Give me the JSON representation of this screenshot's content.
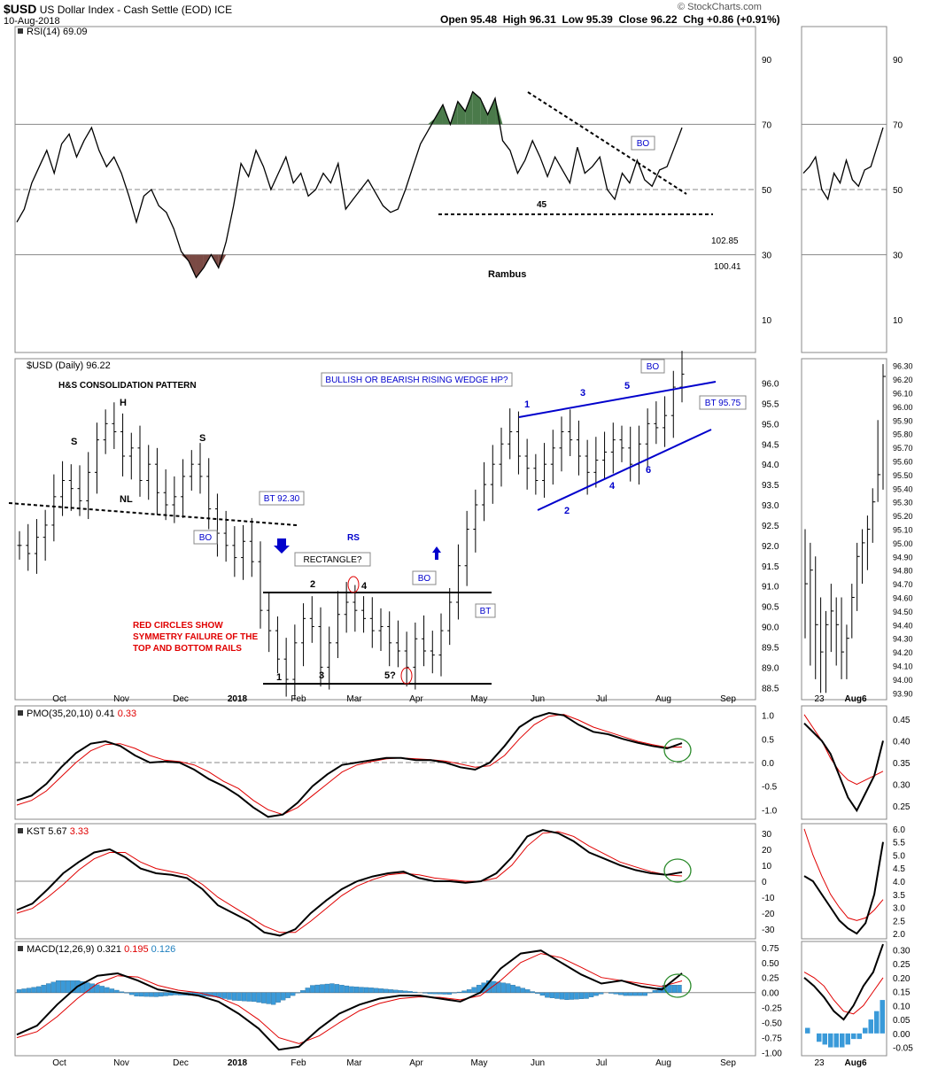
{
  "header": {
    "symbol": "$USD",
    "name": "US Dollar Index - Cash Settle (EOD) ICE",
    "date": "10-Aug-2018",
    "open_label": "Open",
    "open": "95.48",
    "high_label": "High",
    "high": "96.31",
    "low_label": "Low",
    "low": "95.39",
    "close_label": "Close",
    "close": "96.22",
    "chg_label": "Chg",
    "chg": "+0.86 (+0.91%)",
    "watermark": "© StockCharts.com"
  },
  "colors": {
    "line": "#000000",
    "signal": "#e00000",
    "blue": "#0000cc",
    "hist": "#3a9ad9",
    "ob": "#4a7a4a",
    "os": "#7a4a44",
    "grid": "#999999"
  },
  "chart_data": [
    {
      "type": "line",
      "panel": "RSI",
      "legend": "RSI(14) 69.09",
      "ylim": [
        0,
        100
      ],
      "yticks": [
        10,
        30,
        50,
        70,
        90
      ],
      "ref_lines": [
        30,
        50,
        70
      ],
      "side_values": [
        "102.85",
        "100.41"
      ],
      "annotations": {
        "support_level": "45",
        "bo": "BO",
        "author": "Rambus"
      },
      "x_labels": [
        "Oct",
        "Nov",
        "Dec",
        "2018",
        "Feb",
        "Mar",
        "Apr",
        "May",
        "Jun",
        "Jul",
        "Aug",
        "Sep"
      ],
      "values": [
        40,
        44,
        52,
        57,
        62,
        55,
        64,
        67,
        60,
        65,
        69,
        62,
        57,
        60,
        55,
        48,
        40,
        48,
        50,
        45,
        43,
        38,
        31,
        28,
        23,
        26,
        30,
        26,
        34,
        45,
        58,
        54,
        62,
        57,
        50,
        55,
        60,
        52,
        55,
        48,
        50,
        55,
        52,
        58,
        44,
        47,
        50,
        53,
        49,
        45,
        43,
        44,
        50,
        57,
        64,
        68,
        72,
        76,
        70,
        77,
        74,
        80,
        78,
        73,
        78,
        65,
        62,
        55,
        59,
        65,
        60,
        54,
        60,
        56,
        52,
        63,
        55,
        57,
        60,
        50,
        47,
        55,
        52,
        59,
        53,
        51,
        56,
        57,
        63,
        69
      ]
    },
    {
      "type": "bar",
      "panel": "Price",
      "legend": "$USD (Daily) 96.22",
      "ylim": [
        88.2,
        96.6
      ],
      "yticks": [
        "88.5",
        "89.0",
        "89.5",
        "90.0",
        "90.5",
        "91.0",
        "91.5",
        "92.0",
        "92.5",
        "93.0",
        "93.5",
        "94.0",
        "94.5",
        "95.0",
        "95.5",
        "96.0"
      ],
      "x_labels": [
        "Oct",
        "Nov",
        "Dec",
        "2018",
        "Feb",
        "Mar",
        "Apr",
        "May",
        "Jun",
        "Jul",
        "Aug",
        "Sep"
      ],
      "closes": [
        92.0,
        91.8,
        92.2,
        92.5,
        93.2,
        93.6,
        93.4,
        93.1,
        93.8,
        94.6,
        95.0,
        94.8,
        94.2,
        94.4,
        93.6,
        94.0,
        93.3,
        93.0,
        93.2,
        93.7,
        94.0,
        93.7,
        92.9,
        92.3,
        92.0,
        91.7,
        92.1,
        91.6,
        90.4,
        89.9,
        89.2,
        88.7,
        89.6,
        90.2,
        90.0,
        89.0,
        89.6,
        90.3,
        90.6,
        90.4,
        90.2,
        89.9,
        90.0,
        89.6,
        89.4,
        89.0,
        89.7,
        89.4,
        89.3,
        89.9,
        90.6,
        91.5,
        92.4,
        93.0,
        93.5,
        94.0,
        94.5,
        94.8,
        94.2,
        93.9,
        93.6,
        94.0,
        94.4,
        94.8,
        94.6,
        94.2,
        93.8,
        94.1,
        94.3,
        94.6,
        94.4,
        94.0,
        94.5,
        95.0,
        94.9,
        95.2,
        95.9,
        96.22
      ],
      "annotations": {
        "pattern_title": "H&S CONSOLIDATION PATTERN",
        "left_shoulder": "S",
        "head": "H",
        "right_shoulder": "S",
        "neckline": "NL",
        "bt1": "BT 92.30",
        "bo1": "BO",
        "rs": "RS",
        "rectangle": "RECTANGLE?",
        "rect_pts": [
          "1",
          "2",
          "3",
          "4",
          "5?"
        ],
        "bo2": "BO",
        "bt2": "BT",
        "red_note_lines": [
          "RED CIRCLES SHOW",
          "SYMMETRY FAILURE OF THE",
          "TOP AND BOTTOM RAILS"
        ],
        "wedge_title": "BULLISH OR BEARISH RISING WEDGE HP?",
        "wedge_pts": [
          "1",
          "2",
          "3",
          "4",
          "5",
          "6"
        ],
        "bo3": "BO",
        "bt3": "BT 95.75"
      }
    },
    {
      "type": "line",
      "panel": "PMO",
      "legend_name": "PMO(35,20,10)",
      "legend_val1": "0.41",
      "legend_val2": "0.33",
      "ylim": [
        -1.2,
        1.2
      ],
      "yticks": [
        "-1.0",
        "-0.5",
        "0.0",
        "0.5",
        "1.0"
      ],
      "series": [
        {
          "name": "PMO",
          "values": [
            -0.8,
            -0.7,
            -0.45,
            -0.1,
            0.2,
            0.4,
            0.45,
            0.35,
            0.15,
            0.0,
            0.02,
            0.0,
            -0.15,
            -0.35,
            -0.5,
            -0.7,
            -0.95,
            -1.15,
            -1.1,
            -0.85,
            -0.5,
            -0.25,
            -0.05,
            0.0,
            0.05,
            0.1,
            0.1,
            0.05,
            0.05,
            0.0,
            -0.1,
            -0.15,
            0.0,
            0.35,
            0.75,
            0.95,
            1.05,
            1.0,
            0.8,
            0.65,
            0.6,
            0.5,
            0.42,
            0.35,
            0.3,
            0.41
          ]
        },
        {
          "name": "Signal",
          "values": [
            -0.9,
            -0.8,
            -0.6,
            -0.3,
            0.0,
            0.25,
            0.38,
            0.4,
            0.3,
            0.15,
            0.05,
            0.02,
            -0.05,
            -0.2,
            -0.4,
            -0.55,
            -0.8,
            -1.0,
            -1.1,
            -0.95,
            -0.7,
            -0.45,
            -0.2,
            -0.05,
            0.02,
            0.08,
            0.1,
            0.08,
            0.06,
            0.03,
            -0.03,
            -0.1,
            -0.07,
            0.15,
            0.5,
            0.8,
            0.98,
            1.02,
            0.9,
            0.75,
            0.65,
            0.55,
            0.45,
            0.38,
            0.32,
            0.33
          ]
        }
      ],
      "inset": {
        "ylim": [
          0.22,
          0.48
        ],
        "yticks": [
          "0.25",
          "0.30",
          "0.35",
          "0.40",
          "0.45"
        ],
        "series": [
          [
            0.44,
            0.42,
            0.4,
            0.37,
            0.32,
            0.27,
            0.24,
            0.28,
            0.32,
            0.4
          ],
          [
            0.46,
            0.43,
            0.4,
            0.36,
            0.33,
            0.31,
            0.3,
            0.31,
            0.32,
            0.33
          ]
        ]
      }
    },
    {
      "type": "line",
      "panel": "KST",
      "legend_name": "KST",
      "legend_val1": "5.67",
      "legend_val2": "3.33",
      "ylim": [
        -36,
        36
      ],
      "yticks": [
        "-30",
        "-20",
        "-10",
        "0",
        "10",
        "20",
        "30"
      ],
      "series": [
        {
          "name": "KST",
          "values": [
            -18,
            -14,
            -5,
            5,
            12,
            18,
            20,
            15,
            8,
            5,
            4,
            2,
            -5,
            -15,
            -20,
            -25,
            -32,
            -34,
            -30,
            -20,
            -12,
            -5,
            0,
            3,
            5,
            6,
            2,
            0,
            0,
            -1,
            0,
            5,
            15,
            28,
            32,
            30,
            25,
            18,
            14,
            10,
            7,
            5,
            4,
            5.67
          ]
        },
        {
          "name": "Signal",
          "values": [
            -20,
            -17,
            -10,
            -2,
            7,
            14,
            18,
            18,
            12,
            8,
            6,
            4,
            -2,
            -10,
            -16,
            -22,
            -28,
            -32,
            -32,
            -25,
            -17,
            -9,
            -3,
            1,
            4,
            5,
            4,
            2,
            1,
            0,
            0,
            2,
            10,
            22,
            30,
            31,
            28,
            22,
            17,
            12,
            9,
            6,
            4,
            3.33
          ]
        }
      ],
      "inset": {
        "ylim": [
          1.8,
          6.2
        ],
        "yticks": [
          "2.0",
          "2.5",
          "3.0",
          "3.5",
          "4.0",
          "4.5",
          "5.0",
          "5.5",
          "6.0"
        ],
        "series": [
          [
            4.2,
            4.0,
            3.5,
            3.0,
            2.5,
            2.2,
            2.0,
            2.4,
            3.5,
            5.5
          ],
          [
            6.0,
            5.0,
            4.2,
            3.5,
            3.0,
            2.6,
            2.5,
            2.6,
            2.9,
            3.3
          ]
        ]
      }
    },
    {
      "type": "line",
      "panel": "MACD",
      "legend_name": "MACD(12,26,9)",
      "legend_val1": "0.321",
      "legend_val2": "0.195",
      "legend_val3": "0.126",
      "ylim": [
        -1.05,
        0.85
      ],
      "yticks": [
        "-1.00",
        "-0.75",
        "-0.50",
        "-0.25",
        "0.00",
        "0.25",
        "0.50",
        "0.75"
      ],
      "series": [
        {
          "name": "MACD",
          "values": [
            -0.7,
            -0.55,
            -0.2,
            0.1,
            0.28,
            0.32,
            0.2,
            0.05,
            0.0,
            -0.05,
            -0.15,
            -0.35,
            -0.6,
            -0.95,
            -0.9,
            -0.6,
            -0.35,
            -0.2,
            -0.1,
            -0.05,
            -0.05,
            -0.1,
            -0.15,
            0.0,
            0.4,
            0.65,
            0.7,
            0.5,
            0.3,
            0.15,
            0.2,
            0.1,
            0.05,
            0.321
          ]
        },
        {
          "name": "Signal",
          "values": [
            -0.75,
            -0.65,
            -0.4,
            -0.1,
            0.15,
            0.28,
            0.26,
            0.12,
            0.04,
            0.0,
            -0.08,
            -0.22,
            -0.45,
            -0.75,
            -0.85,
            -0.72,
            -0.5,
            -0.3,
            -0.18,
            -0.1,
            -0.07,
            -0.08,
            -0.12,
            -0.05,
            0.2,
            0.5,
            0.65,
            0.58,
            0.42,
            0.25,
            0.2,
            0.15,
            0.1,
            0.195
          ]
        },
        {
          "name": "Histogram",
          "values": [
            0.05,
            0.1,
            0.2,
            0.2,
            0.13,
            0.04,
            -0.06,
            -0.07,
            -0.04,
            -0.05,
            -0.07,
            -0.13,
            -0.15,
            -0.2,
            -0.05,
            0.12,
            0.15,
            0.1,
            0.08,
            0.05,
            0.02,
            -0.02,
            -0.03,
            0.05,
            0.2,
            0.15,
            0.05,
            -0.08,
            -0.12,
            -0.1,
            0.0,
            -0.05,
            -0.05,
            0.126
          ]
        }
      ],
      "inset": {
        "ylim": [
          -0.08,
          0.33
        ],
        "yticks": [
          "-0.05",
          "0.00",
          "0.05",
          "0.10",
          "0.15",
          "0.20",
          "0.25",
          "0.30"
        ],
        "series": [
          [
            0.2,
            0.17,
            0.13,
            0.08,
            0.05,
            0.1,
            0.17,
            0.22,
            0.32
          ],
          [
            0.22,
            0.2,
            0.17,
            0.12,
            0.08,
            0.07,
            0.1,
            0.15,
            0.2
          ]
        ],
        "hist": [
          0.02,
          0.0,
          -0.03,
          -0.04,
          -0.05,
          -0.05,
          -0.05,
          -0.04,
          -0.02,
          -0.02,
          0.02,
          0.05,
          0.08,
          0.12
        ]
      }
    }
  ],
  "inset_x_labels": [
    "23",
    "Aug6"
  ],
  "inset_price": {
    "ylim": [
      93.85,
      96.35
    ],
    "yticks": [
      "93.90",
      "94.00",
      "94.10",
      "94.20",
      "94.30",
      "94.40",
      "94.50",
      "94.60",
      "94.70",
      "94.80",
      "94.90",
      "95.00",
      "95.10",
      "95.20",
      "95.30",
      "95.40",
      "95.50",
      "95.60",
      "95.70",
      "95.80",
      "95.90",
      "96.00",
      "96.10",
      "96.20",
      "96.30"
    ],
    "bars": [
      [
        95.1,
        94.3,
        94.7
      ],
      [
        95.0,
        94.1,
        94.8
      ],
      [
        94.9,
        94.0,
        94.4
      ],
      [
        94.6,
        93.9,
        94.2
      ],
      [
        94.5,
        93.9,
        94.4
      ],
      [
        94.7,
        94.2,
        94.5
      ],
      [
        94.6,
        94.1,
        94.4
      ],
      [
        94.6,
        94.0,
        94.2
      ],
      [
        94.4,
        94.0,
        94.3
      ],
      [
        94.7,
        94.3,
        94.6
      ],
      [
        95.0,
        94.5,
        94.9
      ],
      [
        95.1,
        94.7,
        95.0
      ],
      [
        95.2,
        94.8,
        95.1
      ],
      [
        95.4,
        95.0,
        95.3
      ],
      [
        95.9,
        95.3,
        95.5
      ],
      [
        96.31,
        95.39,
        96.22
      ]
    ]
  }
}
